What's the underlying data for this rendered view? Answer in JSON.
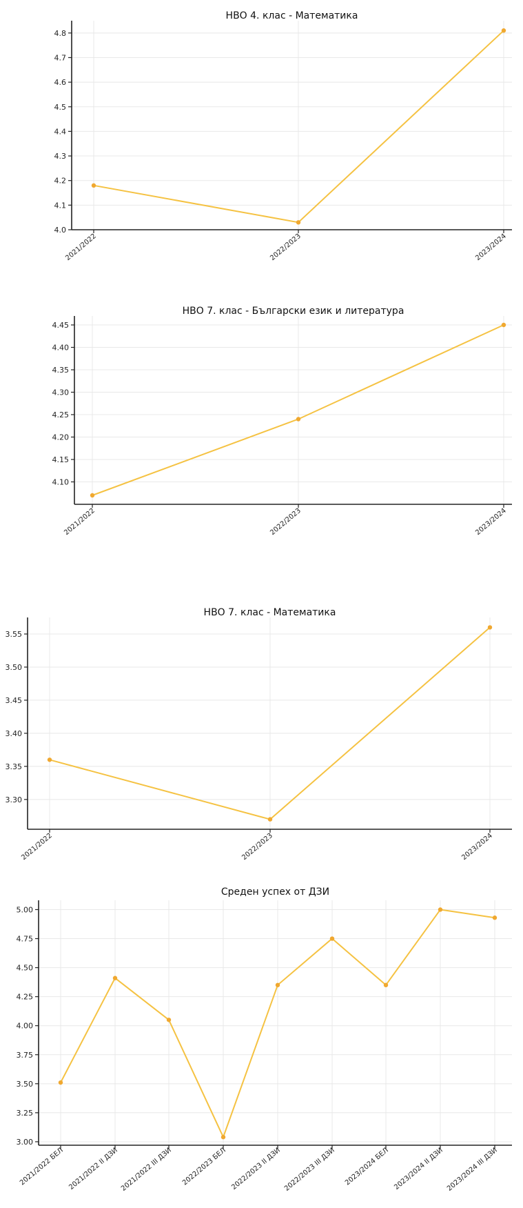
{
  "chart_data": [
    {
      "type": "line",
      "title": "НВО 4. клас - Математика",
      "categories": [
        "2021/2022",
        "2022/2023",
        "2023/2024"
      ],
      "values": [
        4.18,
        4.03,
        4.81
      ],
      "yticks": [
        "4.0",
        "4.1",
        "4.2",
        "4.3",
        "4.4",
        "4.5",
        "4.6",
        "4.7",
        "4.8"
      ],
      "ylim": [
        4.0,
        4.85
      ],
      "grid": true,
      "color": "#f5c242"
    },
    {
      "type": "line",
      "title": "НВО 7. клас - Български език и литература",
      "categories": [
        "2021/2022",
        "2022/2023",
        "2023/2024"
      ],
      "values": [
        4.07,
        4.24,
        4.45
      ],
      "yticks": [
        "4.10",
        "4.15",
        "4.20",
        "4.25",
        "4.30",
        "4.35",
        "4.40",
        "4.45"
      ],
      "ylim": [
        4.05,
        4.47
      ],
      "grid": true,
      "color": "#f5c242"
    },
    {
      "type": "line",
      "title": "НВО 7. клас - Математика",
      "categories": [
        "2021/2022",
        "2022/2023",
        "2023/2024"
      ],
      "values": [
        3.36,
        3.27,
        3.56
      ],
      "yticks": [
        "3.30",
        "3.35",
        "3.40",
        "3.45",
        "3.50",
        "3.55"
      ],
      "ylim": [
        3.255,
        3.575
      ],
      "grid": true,
      "color": "#f5c242"
    },
    {
      "type": "line",
      "title": "Среден успех от ДЗИ",
      "categories": [
        "2021/2022 БЕЛ",
        "2021/2022 II ДЗИ",
        "2021/2022 III ДЗИ",
        "2022/2023 БЕЛ",
        "2022/2023 II ДЗИ",
        "2022/2023 III ДЗИ",
        "2023/2024 БЕЛ",
        "2023/2024 II ДЗИ",
        "2023/2024 III ДЗИ"
      ],
      "values": [
        3.51,
        4.41,
        4.05,
        3.04,
        4.35,
        4.75,
        4.35,
        5.0,
        4.93
      ],
      "yticks": [
        "3.00",
        "3.25",
        "3.50",
        "3.75",
        "4.00",
        "4.25",
        "4.50",
        "4.75",
        "5.00"
      ],
      "ylim": [
        2.97,
        5.08
      ],
      "grid": true,
      "color": "#f5c242"
    }
  ]
}
